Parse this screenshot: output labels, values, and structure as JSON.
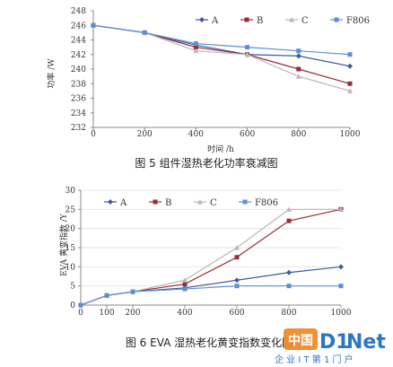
{
  "colors": {
    "A": "#3d5a9e",
    "B": "#9c2b35",
    "C": "#b9b9b9",
    "F806": "#5b8fd6",
    "axis": "#8a8a8a",
    "grid": "#e6e6e6",
    "watermark_orange": "#f08a2a",
    "watermark_blue": "#2b76c6"
  },
  "watermark": {
    "logo_parts": [
      "中国",
      "D1",
      "Net"
    ],
    "subtitle": "企 业 I T 第 1 门 户"
  },
  "chart_data": [
    {
      "type": "line",
      "caption": "图 5 组件湿热老化功率衰减图",
      "xlabel": "时间 /h",
      "ylabel": "功率 /W",
      "x": [
        0,
        200,
        400,
        600,
        800,
        1000
      ],
      "xlim": [
        0,
        1000
      ],
      "ylim": [
        232,
        248
      ],
      "xticks": [
        "0",
        "200",
        "400",
        "600",
        "800",
        "1000"
      ],
      "yticks": [
        "232",
        "234",
        "236",
        "238",
        "240",
        "242",
        "244",
        "246",
        "248"
      ],
      "legend_position": "top-right",
      "grid": false,
      "series": [
        {
          "name": "A",
          "values": [
            246,
            245,
            243.3,
            242,
            241.8,
            240.4
          ],
          "marker": "diamond"
        },
        {
          "name": "B",
          "values": [
            246,
            245,
            243,
            242,
            240,
            238
          ],
          "marker": "square"
        },
        {
          "name": "C",
          "values": [
            246,
            245,
            242.5,
            242,
            239,
            237
          ],
          "marker": "triangle"
        },
        {
          "name": "F806",
          "values": [
            246,
            245,
            243.5,
            243,
            242.5,
            242
          ],
          "marker": "square"
        }
      ]
    },
    {
      "type": "line",
      "caption": "图 6 EVA 湿热老化黄变指数变化图",
      "xlabel": "",
      "ylabel": "EVA 黄变指数 /Y",
      "x": [
        0,
        100,
        200,
        400,
        600,
        800,
        1000
      ],
      "xlim": [
        0,
        1000
      ],
      "ylim": [
        0,
        30
      ],
      "xticks": [
        "0",
        "100",
        "200",
        "400",
        "600",
        "800",
        "1000"
      ],
      "yticks": [
        "0",
        "5",
        "10",
        "15",
        "20",
        "25",
        "30"
      ],
      "legend_position": "top",
      "grid": true,
      "series": [
        {
          "name": "A",
          "values": [
            0,
            2.5,
            3.5,
            4.5,
            6.5,
            8.5,
            10
          ],
          "marker": "diamond"
        },
        {
          "name": "B",
          "values": [
            0,
            2.5,
            3.5,
            5.5,
            12.5,
            22,
            25
          ],
          "marker": "square"
        },
        {
          "name": "C",
          "values": [
            0,
            2.5,
            3.5,
            6.5,
            15,
            25,
            25
          ],
          "marker": "triangle"
        },
        {
          "name": "F806",
          "values": [
            0,
            2.5,
            3.5,
            4.2,
            5,
            5,
            5
          ],
          "marker": "square"
        }
      ]
    }
  ]
}
